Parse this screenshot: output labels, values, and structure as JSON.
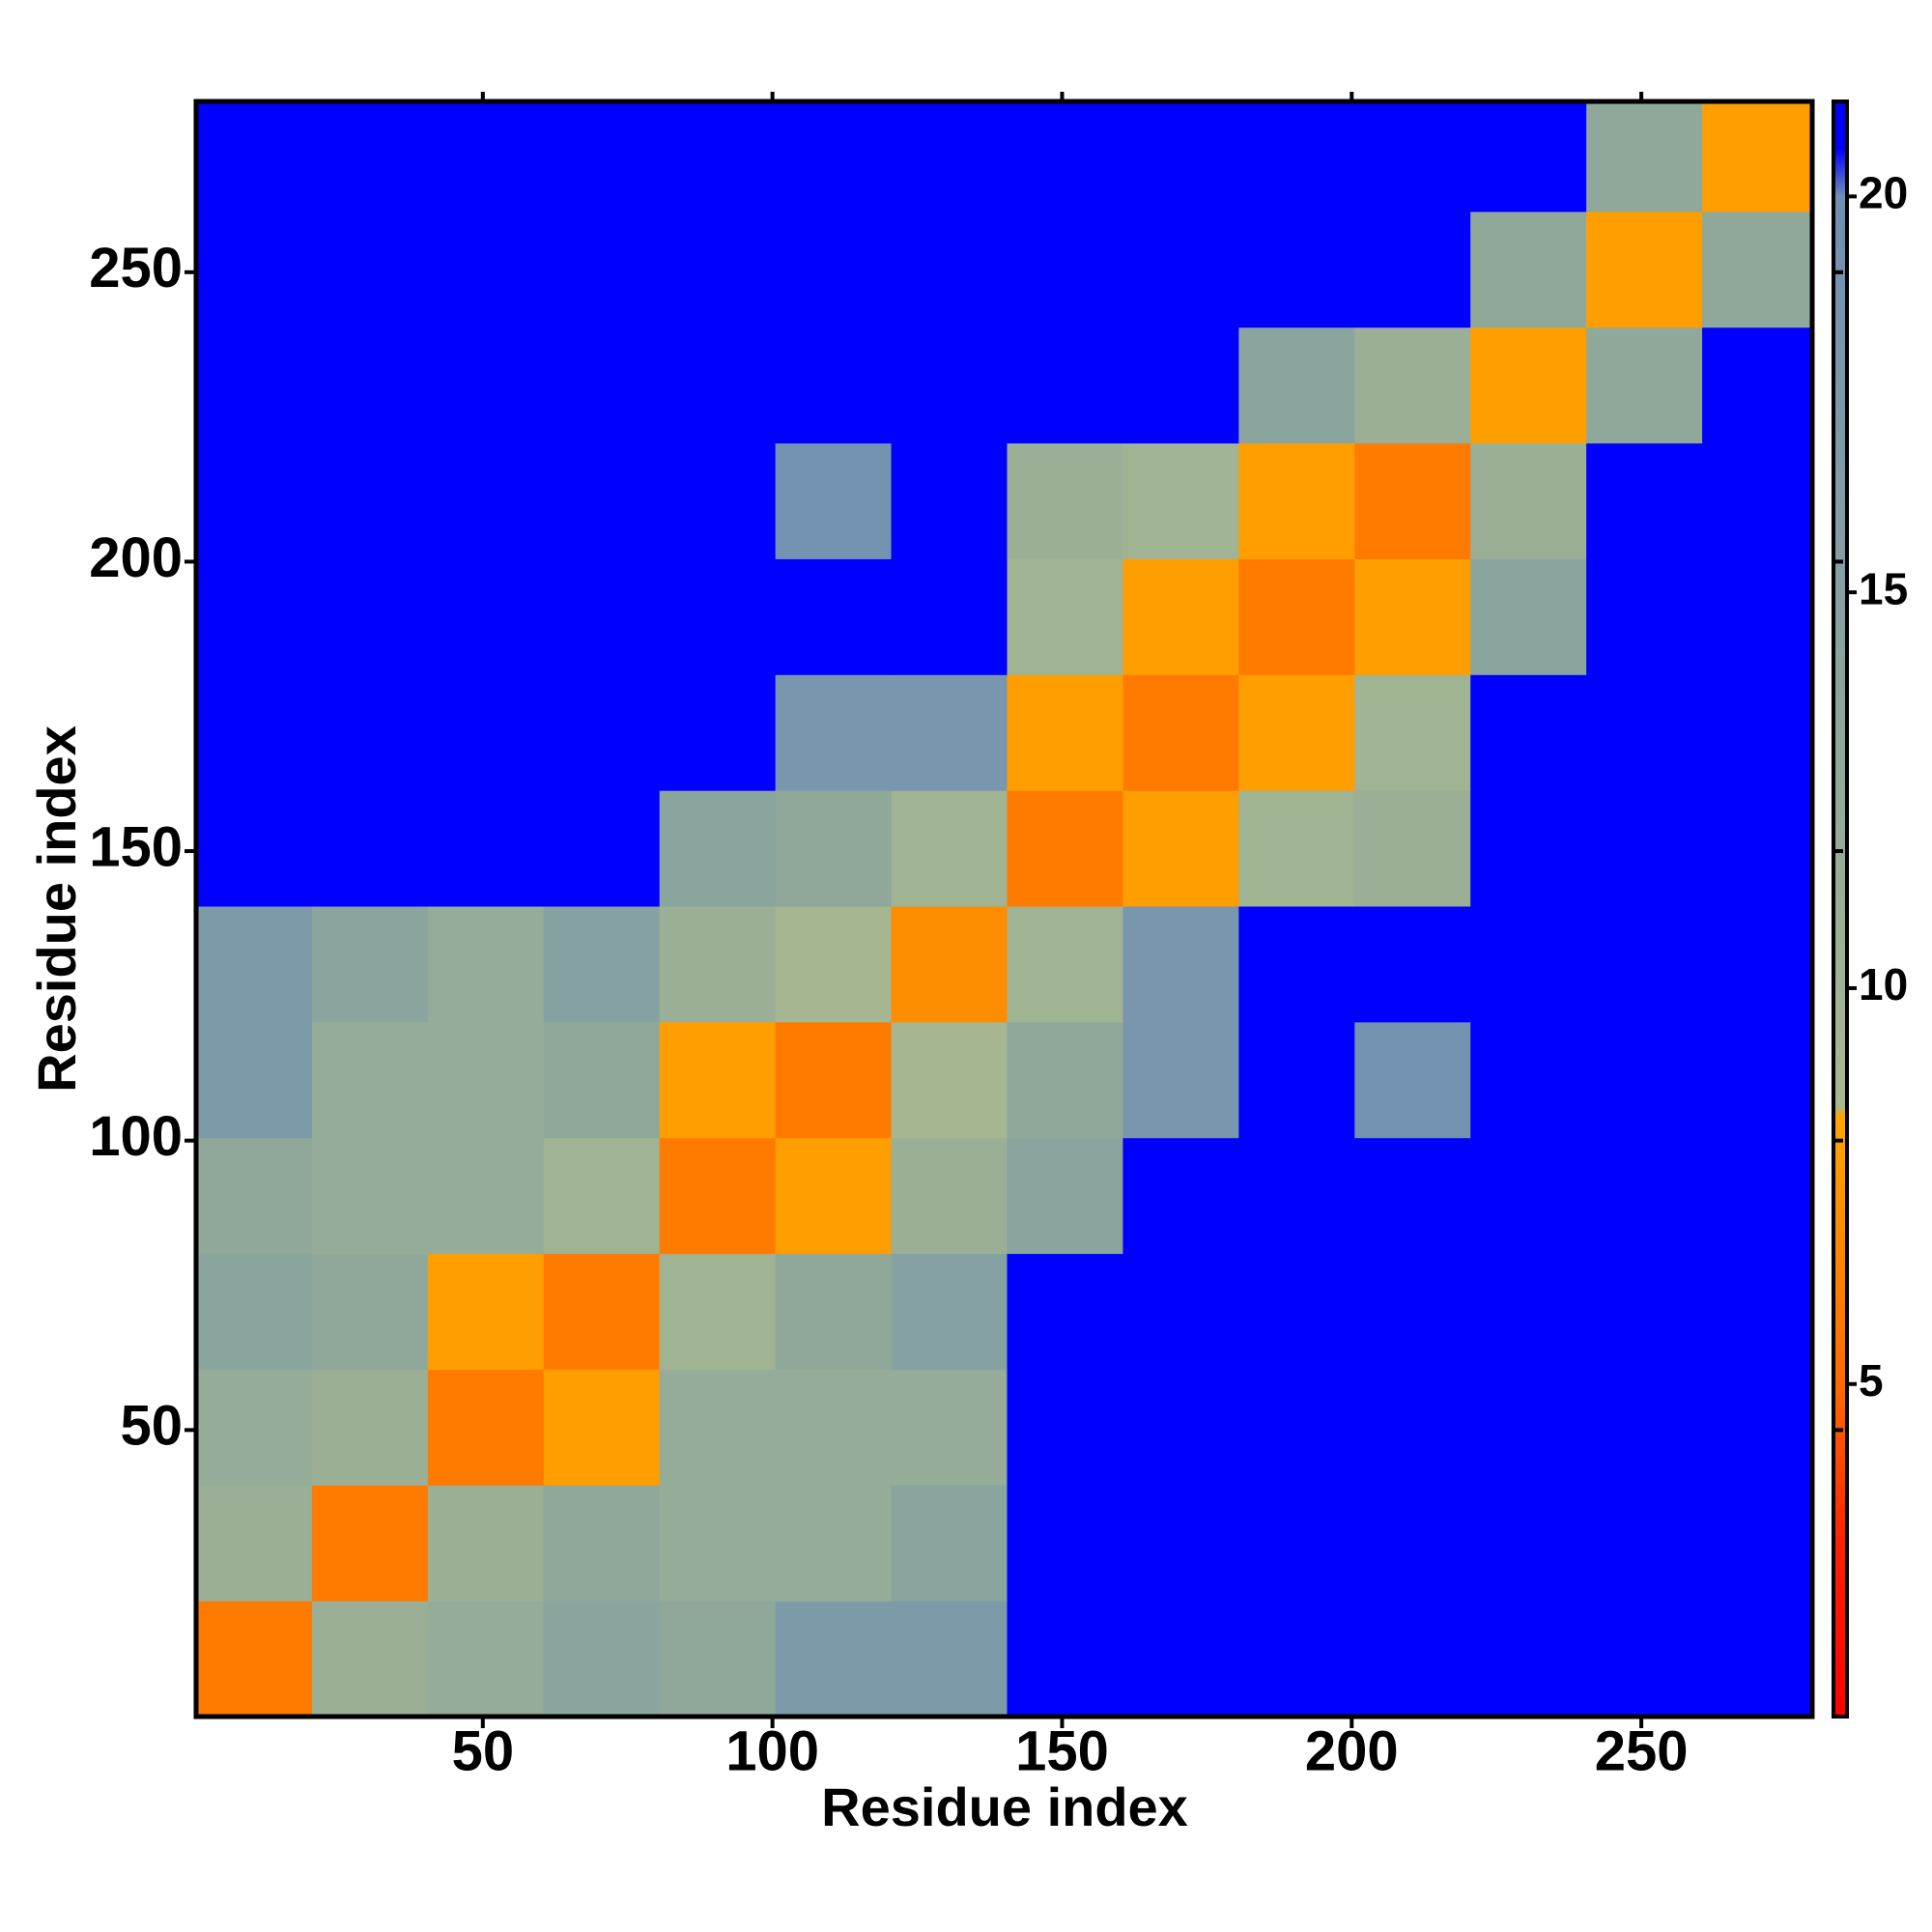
{
  "chart_data": {
    "type": "heatmap",
    "x_label": "Residue index",
    "y_label": "Residue index",
    "xbins": [
      0.5,
      20.5,
      40.5,
      60.5,
      80.5,
      100.5,
      120.5,
      140.5,
      160.5,
      180.5,
      200.5,
      220.5,
      240.5,
      260.5,
      279.5
    ],
    "ybins": [
      0.5,
      20.5,
      40.5,
      60.5,
      80.5,
      100.5,
      120.5,
      140.5,
      160.5,
      180.5,
      200.5,
      220.5,
      240.5,
      260.5,
      279.5
    ],
    "values": [
      [
        6,
        11,
        12,
        14,
        13,
        17,
        17,
        21,
        21,
        21,
        21,
        21,
        21,
        21
      ],
      [
        11,
        6,
        11,
        13,
        12,
        12,
        14,
        21,
        21,
        21,
        21,
        21,
        21,
        21
      ],
      [
        12,
        11,
        6,
        8,
        12,
        12,
        12,
        21,
        21,
        21,
        21,
        21,
        21,
        21
      ],
      [
        14,
        13,
        8,
        6,
        10,
        13,
        15,
        21,
        21,
        21,
        21,
        21,
        21,
        21
      ],
      [
        13,
        12,
        12,
        10,
        6,
        8,
        11,
        14,
        21,
        21,
        21,
        21,
        21,
        21
      ],
      [
        17,
        12,
        12,
        13,
        8,
        6,
        9,
        13,
        18,
        21,
        19,
        21,
        21,
        21
      ],
      [
        17,
        14,
        12,
        15,
        11,
        9,
        7,
        10,
        18,
        21,
        21,
        21,
        21,
        21
      ],
      [
        21,
        21,
        21,
        21,
        14,
        13,
        10,
        6,
        8,
        10,
        11,
        21,
        21,
        21
      ],
      [
        21,
        21,
        21,
        21,
        21,
        18,
        18,
        8,
        6,
        8,
        10,
        21,
        21,
        21
      ],
      [
        21,
        21,
        21,
        21,
        21,
        21,
        21,
        10,
        8,
        6,
        8,
        14,
        21,
        21
      ],
      [
        21,
        21,
        21,
        21,
        21,
        19,
        21,
        11,
        10,
        8,
        6,
        11,
        21,
        21
      ],
      [
        21,
        21,
        21,
        21,
        21,
        21,
        21,
        21,
        21,
        14,
        11,
        8,
        13,
        21
      ],
      [
        21,
        21,
        21,
        21,
        21,
        21,
        21,
        21,
        21,
        21,
        21,
        13,
        8,
        13
      ],
      [
        21,
        21,
        21,
        21,
        21,
        21,
        21,
        21,
        21,
        21,
        21,
        21,
        13,
        8
      ]
    ],
    "xlim": [
      0.5,
      279.5
    ],
    "ylim": [
      0.5,
      279.5
    ],
    "xticks": [
      50,
      100,
      150,
      200,
      250
    ],
    "yticks": [
      50,
      100,
      150,
      200,
      250
    ],
    "clim": [
      0.8,
      21.2
    ],
    "cticks": [
      5,
      10,
      15,
      20
    ],
    "colorscale": [
      [
        0.8,
        "#ff0000"
      ],
      [
        3,
        "#ff2200"
      ],
      [
        5,
        "#ff6a00"
      ],
      [
        8.4,
        "#ffa500"
      ],
      [
        8.5,
        "#a8b890"
      ],
      [
        13,
        "#8fa89a"
      ],
      [
        20,
        "#6f8fb4"
      ],
      [
        20.6,
        "#0000ff"
      ],
      [
        21.2,
        "#0000ff"
      ]
    ]
  }
}
